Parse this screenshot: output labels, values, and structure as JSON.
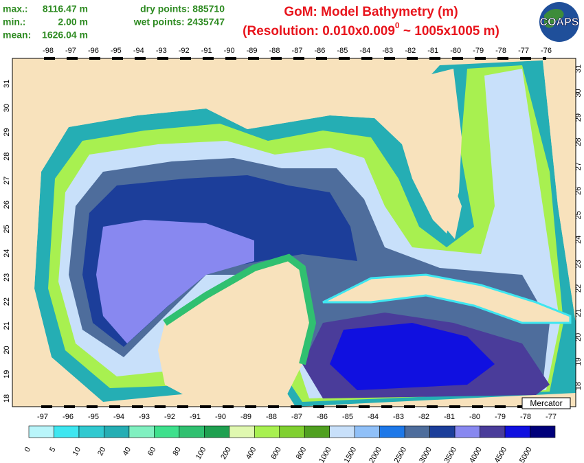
{
  "stats": {
    "max": {
      "label": "max.:",
      "value": "8116.47 m"
    },
    "min": {
      "label": "min.:",
      "value": "2.00 m"
    },
    "mean": {
      "label": "mean:",
      "value": "1626.04 m"
    },
    "dry": "dry points: 885710",
    "wet": "wet points: 2435747"
  },
  "title": "GoM: Model Bathymetry (m)",
  "subtitle": {
    "before": "(Resolution: 0.010x0.009",
    "superscript": "0",
    "after": " ~ 1005x1005 m)"
  },
  "logo": "COAPS",
  "top_lon_labels": [
    "-98",
    "-97",
    "-96",
    "-95",
    "-94",
    "-93",
    "-92",
    "-91",
    "-90",
    "-89",
    "-88",
    "-87",
    "-86",
    "-85",
    "-84",
    "-83",
    "-82",
    "-81",
    "-80",
    "-79",
    "-78",
    "-77",
    "-76"
  ],
  "bottom_lon_labels": [
    "-97",
    "-96",
    "-95",
    "-94",
    "-93",
    "-92",
    "-91",
    "-90",
    "-89",
    "-88",
    "-87",
    "-86",
    "-85",
    "-84",
    "-83",
    "-82",
    "-81",
    "-80",
    "-79",
    "-78",
    "-77"
  ],
  "left_lat_labels": [
    "31",
    "30",
    "29",
    "28",
    "27",
    "26",
    "25",
    "24",
    "23",
    "22",
    "21",
    "20",
    "19",
    "18"
  ],
  "right_lat_labels": [
    "31",
    "30",
    "29",
    "28",
    "27",
    "26",
    "25",
    "24",
    "23",
    "22",
    "21",
    "20",
    "19",
    "18"
  ],
  "projection": "Mercator",
  "colorbar": {
    "labels": [
      "0",
      "5",
      "10",
      "20",
      "40",
      "60",
      "80",
      "100",
      "200",
      "400",
      "600",
      "800",
      "1000",
      "1500",
      "2000",
      "2500",
      "3000",
      "3500",
      "4000",
      "4500",
      "5000"
    ],
    "colors": [
      "#b9f5fa",
      "#3ee6f0",
      "#31c9d0",
      "#25aeb4",
      "#80f0c0",
      "#3ee08c",
      "#30c070",
      "#1fa050",
      "#e0f8b0",
      "#a8f050",
      "#80d030",
      "#50a020",
      "#c8e0fa",
      "#90c0f8",
      "#1e78e8",
      "#4e6d9c",
      "#1c3e9a",
      "#8888f0",
      "#4a3c9a",
      "#1010e0",
      "#00007a"
    ]
  }
}
